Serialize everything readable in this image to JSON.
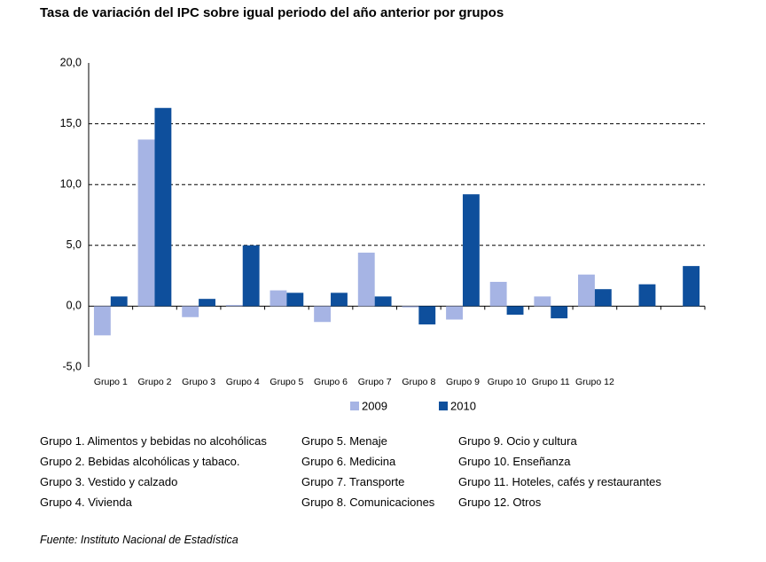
{
  "chart_data": {
    "type": "bar",
    "title": "Tasa de variación del IPC sobre igual periodo del año anterior por grupos",
    "categories": [
      "Grupo 1",
      "Grupo 2",
      "Grupo 3",
      "Grupo 4",
      "Grupo 5",
      "Grupo 6",
      "Grupo 7",
      "Grupo 8",
      "Grupo 9",
      "Grupo 10",
      "Grupo 11",
      "Grupo 12",
      null,
      null
    ],
    "series": [
      {
        "name": "2009",
        "color": "#a6b4e4",
        "values": [
          -2.4,
          13.7,
          -0.9,
          0.1,
          1.3,
          -1.3,
          4.4,
          -0.1,
          -1.1,
          2.0,
          0.8,
          2.6,
          null,
          null
        ]
      },
      {
        "name": "2010",
        "color": "#0e4f9c",
        "values": [
          0.8,
          16.3,
          0.6,
          5.0,
          1.1,
          1.1,
          0.8,
          -1.5,
          9.2,
          -0.7,
          -1.0,
          1.4,
          1.8,
          3.3
        ]
      }
    ],
    "ylim": [
      -5,
      20
    ],
    "yticks": [
      {
        "value": -5,
        "label": "-5,0"
      },
      {
        "value": 0,
        "label": "0,0"
      },
      {
        "value": 5,
        "label": "5,0"
      },
      {
        "value": 10,
        "label": "10,0"
      },
      {
        "value": 15,
        "label": "15,0"
      },
      {
        "value": 20,
        "label": "20,0"
      }
    ],
    "grid": true,
    "legend": "bottom"
  },
  "notes": [
    [
      "Grupo 1. Alimentos y bebidas no alcohólicas",
      "Grupo 2. Bebidas alcohólicas y  tabaco.",
      "Grupo 3. Vestido y calzado",
      "Grupo 4. Vivienda"
    ],
    [
      "Grupo 5. Menaje",
      "Grupo 6. Medicina",
      "Grupo 7. Transporte",
      "Grupo 8. Comunicaciones"
    ],
    [
      "Grupo 9. Ocio y cultura",
      "Grupo 10. Enseñanza",
      "Grupo 11. Hoteles, cafés y restaurantes",
      "Grupo 12. Otros"
    ]
  ],
  "source": "Fuente: Instituto Nacional de Estadística"
}
